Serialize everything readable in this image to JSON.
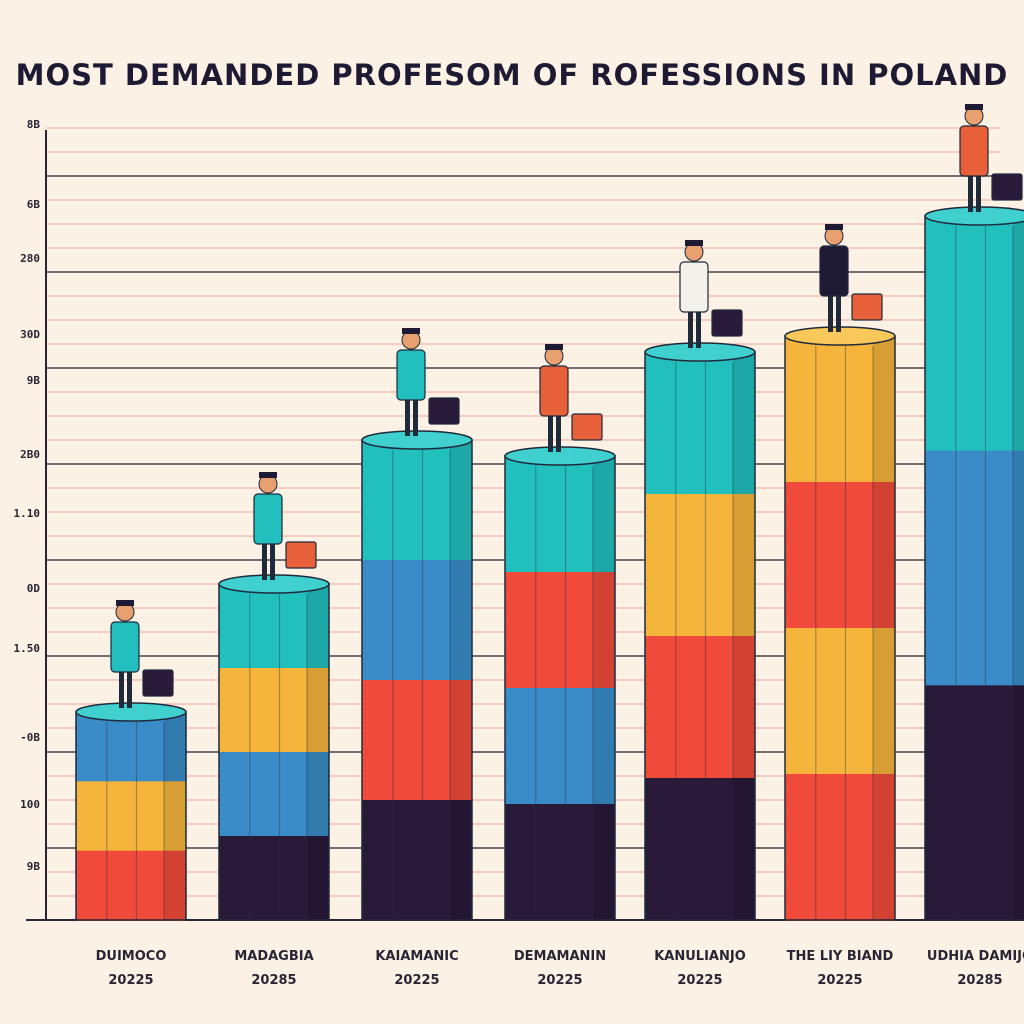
{
  "title": "MOST DEMANDED PROFESOM OF ROFESSIONS IN POLAND",
  "chart_data": {
    "type": "bar",
    "title": "MOST DEMANDED PROFESOM OF ROFESSIONS IN POLAND",
    "xlabel": "",
    "ylabel": "",
    "grid": true,
    "yticks": [
      "8B",
      "6B",
      "280",
      "30D",
      "9B",
      "2B0",
      "1.10",
      "0D",
      "1.50",
      "-0B",
      "100",
      "9B"
    ],
    "categories": [
      {
        "name": "DUIMOCO",
        "year": "20225"
      },
      {
        "name": "MADAGBIA",
        "year": "20285"
      },
      {
        "name": "KAIAMANIC",
        "year": "20225"
      },
      {
        "name": "DEMAMANIN",
        "year": "20225"
      },
      {
        "name": "KANULIANJO",
        "year": "20225"
      },
      {
        "name": "THE LIY BIAND",
        "year": "20225"
      },
      {
        "name": "UDHIA DAMIJO",
        "year": "20285"
      }
    ],
    "values": [
      26,
      42,
      60,
      58,
      71,
      73,
      88
    ],
    "ylim": [
      0,
      100
    ]
  },
  "colors": {
    "teal": "#22bfbf",
    "blue": "#3a8cc8",
    "red": "#f04a3a",
    "yellow": "#f5b43c",
    "dark": "#2a1a3a",
    "gridline": "#f08a80",
    "gridline_dark": "#2a2535"
  }
}
